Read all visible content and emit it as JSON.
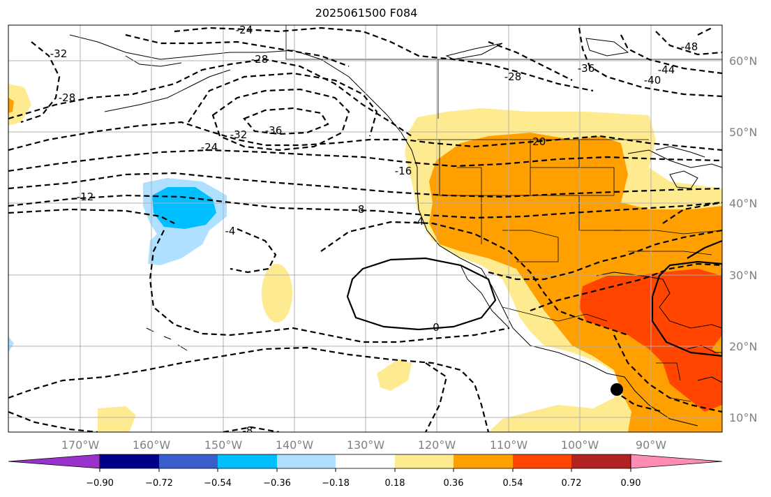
{
  "title": "2025061500 F084",
  "map": {
    "lat_labels": [
      "60°N",
      "50°N",
      "40°N",
      "30°N",
      "20°N",
      "10°N"
    ],
    "lon_labels": [
      "170°W",
      "160°W",
      "150°W",
      "140°W",
      "130°W",
      "120°W",
      "110°W",
      "100°W",
      "90°W"
    ],
    "contour_labels": [
      "-24",
      "-28",
      "-32",
      "-28",
      "-36",
      "-32",
      "-24",
      "-12",
      "-4",
      "-8",
      "-16",
      "-20",
      "-28",
      "-36",
      "-40",
      "-44",
      "-48",
      "0",
      "-8",
      "-4"
    ],
    "colors": {
      "land_outline": "#000000",
      "grid": "#b0b0b0",
      "fill_018_036": "#ffeb8f",
      "fill_036_054": "#ff9f00",
      "fill_054_072": "#ff4500",
      "fill_neg036_neg018": "#b0e0ff",
      "fill_neg054_neg036": "#00bfff"
    }
  },
  "colorbar": {
    "tick_labels": [
      "−0.90",
      "−0.72",
      "−0.54",
      "−0.36",
      "−0.18",
      "0.18",
      "0.36",
      "0.54",
      "0.72",
      "0.90"
    ],
    "bins": [
      {
        "color": "#9932cc"
      },
      {
        "color": "#00008b"
      },
      {
        "color": "#3a5fcd"
      },
      {
        "color": "#00bfff"
      },
      {
        "color": "#b0e0ff"
      },
      {
        "color": "#ffffff"
      },
      {
        "color": "#ffeb8f"
      },
      {
        "color": "#ff9f00"
      },
      {
        "color": "#ff4500"
      },
      {
        "color": "#b22222"
      },
      {
        "color": "#ff8cb4"
      }
    ]
  }
}
